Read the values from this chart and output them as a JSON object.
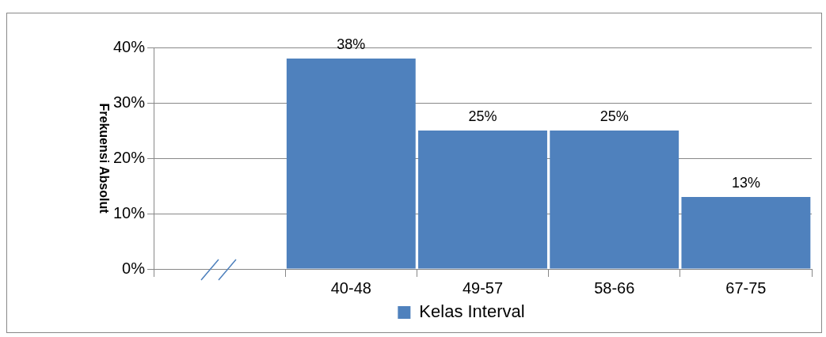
{
  "chart_data": {
    "type": "bar",
    "ylabel": "Frekuensi Absolut",
    "categories": [
      null,
      "40-48",
      "49-57",
      "58-66",
      "67-75"
    ],
    "series": [
      {
        "name": "Kelas Interval",
        "color": "#4f81bd",
        "values": [
          null,
          38,
          25,
          25,
          13
        ]
      }
    ],
    "value_labels": [
      null,
      "38%",
      "25%",
      "25%",
      "13%"
    ],
    "ylim": [
      0,
      40
    ],
    "yticks": [
      {
        "value": 0,
        "label": "0%"
      },
      {
        "value": 10,
        "label": "10%"
      },
      {
        "value": 20,
        "label": "20%"
      },
      {
        "value": 30,
        "label": "30%"
      },
      {
        "value": 40,
        "label": "40%"
      }
    ],
    "grid": "y",
    "legend": "bottom"
  }
}
